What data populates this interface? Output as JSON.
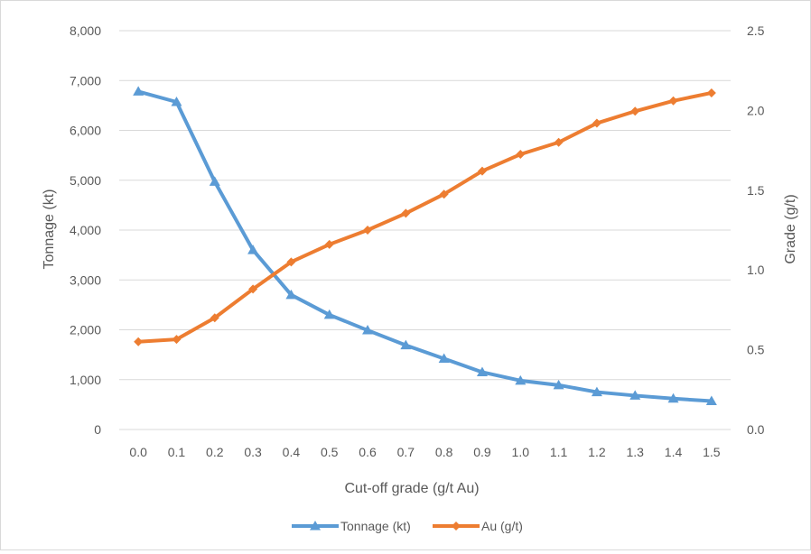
{
  "chart_data": {
    "type": "line",
    "title": "",
    "xlabel": "Cut-off grade (g/t Au)",
    "ylabel": "Tonnage (kt)",
    "y2label": "Grade (g/t)",
    "categories": [
      "0.0",
      "0.1",
      "0.2",
      "0.3",
      "0.4",
      "0.5",
      "0.6",
      "0.7",
      "0.8",
      "0.9",
      "1.0",
      "1.1",
      "1.2",
      "1.3",
      "1.4",
      "1.5"
    ],
    "ylim": [
      0,
      8000
    ],
    "y2lim": [
      0,
      2.5
    ],
    "yticks": [
      "0",
      "1,000",
      "2,000",
      "3,000",
      "4,000",
      "5,000",
      "6,000",
      "7,000",
      "8,000"
    ],
    "y2ticks": [
      "0.0",
      "0.5",
      "1.0",
      "1.5",
      "2.0",
      "2.5"
    ],
    "grid": true,
    "legend_position": "bottom",
    "series": [
      {
        "name": "Tonnage (kt)",
        "axis": "left",
        "marker": "triangle",
        "color": "#5B9BD5",
        "values": [
          6780,
          6570,
          4970,
          3600,
          2700,
          2300,
          1990,
          1690,
          1420,
          1150,
          980,
          890,
          750,
          680,
          620,
          570
        ]
      },
      {
        "name": "Au (g/t)",
        "axis": "right",
        "marker": "diamond",
        "color": "#ED7D31",
        "values": [
          0.55,
          0.565,
          0.7,
          0.88,
          1.05,
          1.16,
          1.25,
          1.355,
          1.475,
          1.62,
          1.725,
          1.8,
          1.92,
          1.995,
          2.06,
          2.11
        ]
      }
    ]
  }
}
